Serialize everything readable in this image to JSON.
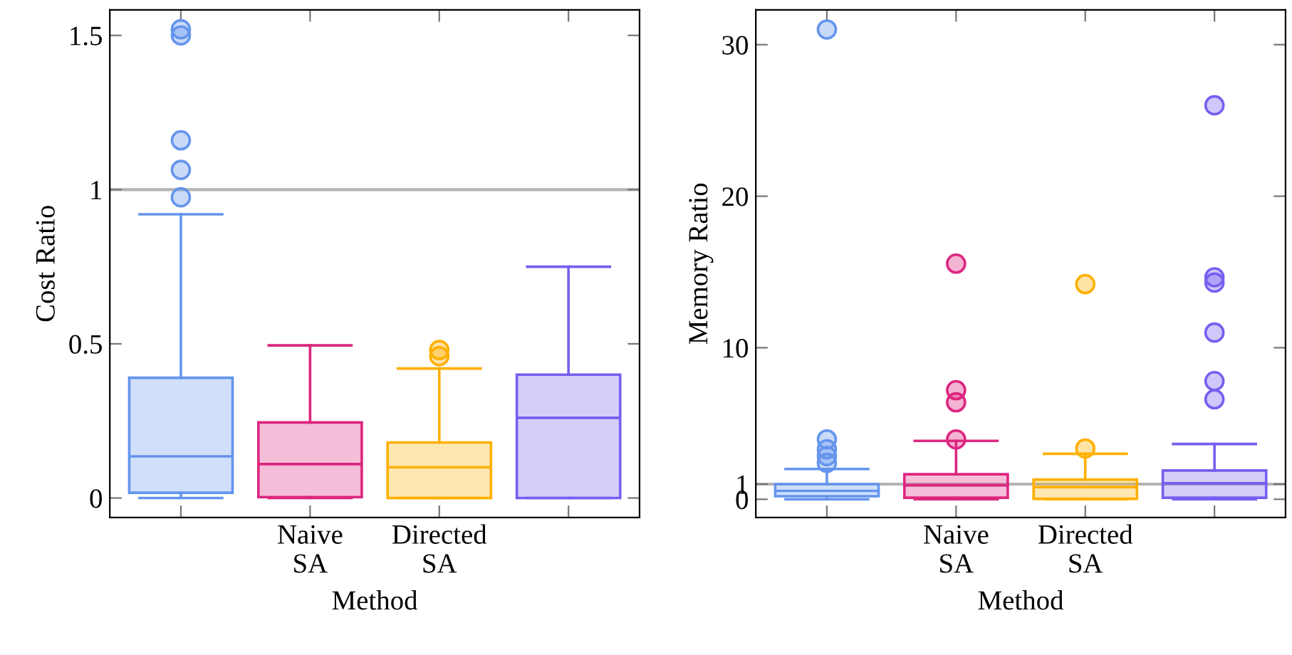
{
  "chart_data": [
    {
      "type": "box",
      "xlabel": "Method",
      "ylabel": "Cost Ratio",
      "categories": [
        null,
        "Naive\nSA",
        "Directed\nSA",
        null
      ],
      "colors": [
        "#6495ed",
        "#dc267f",
        "#ffb000",
        "#785ef0"
      ],
      "ylim": [
        -0.063,
        1.583
      ],
      "yticks": [
        0,
        0.5,
        1,
        1.5
      ],
      "grid": false,
      "ref_lines": [
        {
          "axis": "y",
          "value": 1,
          "color": "#b3b3b3"
        }
      ],
      "boxes": [
        {
          "low": 0,
          "q1": 0.017,
          "median": 0.135,
          "q3": 0.39,
          "high": 0.92,
          "outliers": [
            0.975,
            1.064,
            1.16,
            1.5,
            1.52
          ]
        },
        {
          "low": 0,
          "q1": 0.003,
          "median": 0.11,
          "q3": 0.245,
          "high": 0.495
        },
        {
          "low": 0,
          "q1": 0,
          "median": 0.1,
          "q3": 0.18,
          "high": 0.42,
          "outliers": [
            0.46,
            0.48
          ]
        },
        {
          "low": 0,
          "q1": 0,
          "median": 0.26,
          "q3": 0.4,
          "high": 0.75
        }
      ]
    },
    {
      "type": "box",
      "xlabel": "Method",
      "ylabel": "Memory Ratio",
      "categories": [
        null,
        "Naive\nSA",
        "Directed\nSA",
        null
      ],
      "colors": [
        "#6495ed",
        "#dc267f",
        "#ffb000",
        "#785ef0"
      ],
      "ylim": [
        -1.2,
        32.3
      ],
      "yticks": [
        0,
        1,
        10,
        20,
        30
      ],
      "grid": false,
      "ref_lines": [
        {
          "axis": "y",
          "value": 1,
          "color": "#b3b3b3"
        }
      ],
      "boxes": [
        {
          "low": 0,
          "q1": 0.2,
          "median": 0.55,
          "q3": 1.0,
          "high": 2.0,
          "outliers": [
            2.4,
            2.85,
            3.3,
            3.95,
            31.0
          ]
        },
        {
          "low": 0,
          "q1": 0.1,
          "median": 0.92,
          "q3": 1.65,
          "high": 3.85,
          "outliers": [
            3.95,
            6.4,
            7.2,
            15.55
          ]
        },
        {
          "low": 0,
          "q1": 0.03,
          "median": 0.8,
          "q3": 1.3,
          "high": 3.0,
          "outliers": [
            3.35,
            14.2
          ]
        },
        {
          "low": 0,
          "q1": 0.1,
          "median": 1.05,
          "q3": 1.9,
          "high": 3.65,
          "outliers": [
            6.6,
            7.8,
            11.0,
            14.3,
            14.65,
            26.0
          ]
        }
      ]
    }
  ]
}
